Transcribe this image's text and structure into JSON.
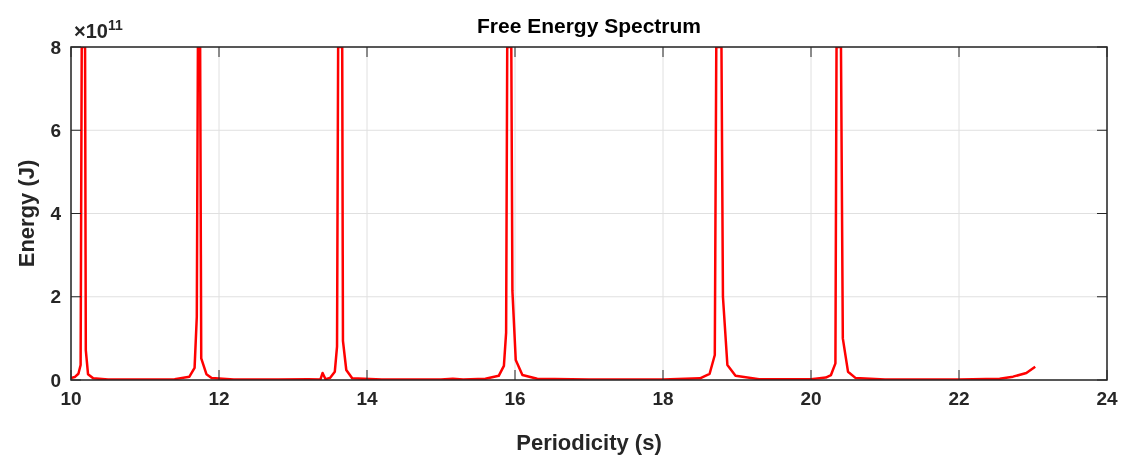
{
  "chart_data": {
    "type": "line",
    "title": "Free Energy Spectrum",
    "xlabel": "Periodicity (s)",
    "ylabel": "Energy (J)",
    "annotations": [
      "×10$^{11}$"
    ],
    "xlim": [
      10,
      24
    ],
    "xticks": [
      10,
      12,
      14,
      16,
      18,
      20,
      22,
      24
    ],
    "ylim": [
      0,
      8
    ],
    "yticks": [
      0,
      2,
      4,
      6,
      8
    ],
    "grid": true,
    "series": [
      {
        "color": "#ff0000",
        "x": [
          10,
          10.05,
          10.1,
          10.13,
          10.145,
          10.19,
          10.2,
          10.23,
          10.3,
          10.5,
          11,
          11.4,
          11.6,
          11.67,
          11.7,
          11.715,
          11.745,
          11.76,
          11.83,
          11.9,
          12.2,
          12.8,
          13.2,
          13.37,
          13.4,
          13.44,
          13.5,
          13.565,
          13.595,
          13.61,
          13.665,
          13.675,
          13.72,
          13.8,
          14.2,
          15,
          15.16,
          15.3,
          15.6,
          15.78,
          15.85,
          15.88,
          15.895,
          15.95,
          15.965,
          16.01,
          16.1,
          16.3,
          17,
          18,
          18.5,
          18.63,
          18.7,
          18.72,
          18.79,
          18.81,
          18.87,
          18.98,
          19.3,
          20,
          20.2,
          20.27,
          20.33,
          20.345,
          20.405,
          20.43,
          20.5,
          20.6,
          21,
          22,
          22.55,
          22.73,
          22.91,
          23.03
        ],
        "values": [
          0.05,
          0.07,
          0.15,
          0.36,
          8,
          8,
          0.72,
          0.14,
          0.04,
          0.01,
          0.01,
          0.02,
          0.08,
          0.29,
          1.52,
          8,
          8,
          0.52,
          0.14,
          0.05,
          0.01,
          0.01,
          0.02,
          0.01,
          0.17,
          0.02,
          0.05,
          0.2,
          0.8,
          8,
          8,
          0.94,
          0.24,
          0.04,
          0.01,
          0.01,
          0.03,
          0.01,
          0.03,
          0.1,
          0.34,
          1.14,
          8,
          8,
          2.14,
          0.48,
          0.12,
          0.03,
          0.01,
          0.01,
          0.04,
          0.15,
          0.6,
          8,
          8,
          2.0,
          0.36,
          0.1,
          0.02,
          0.02,
          0.06,
          0.12,
          0.4,
          8,
          8,
          1.0,
          0.2,
          0.05,
          0.01,
          0.01,
          0.03,
          0.08,
          0.17,
          0.32
        ]
      }
    ]
  }
}
